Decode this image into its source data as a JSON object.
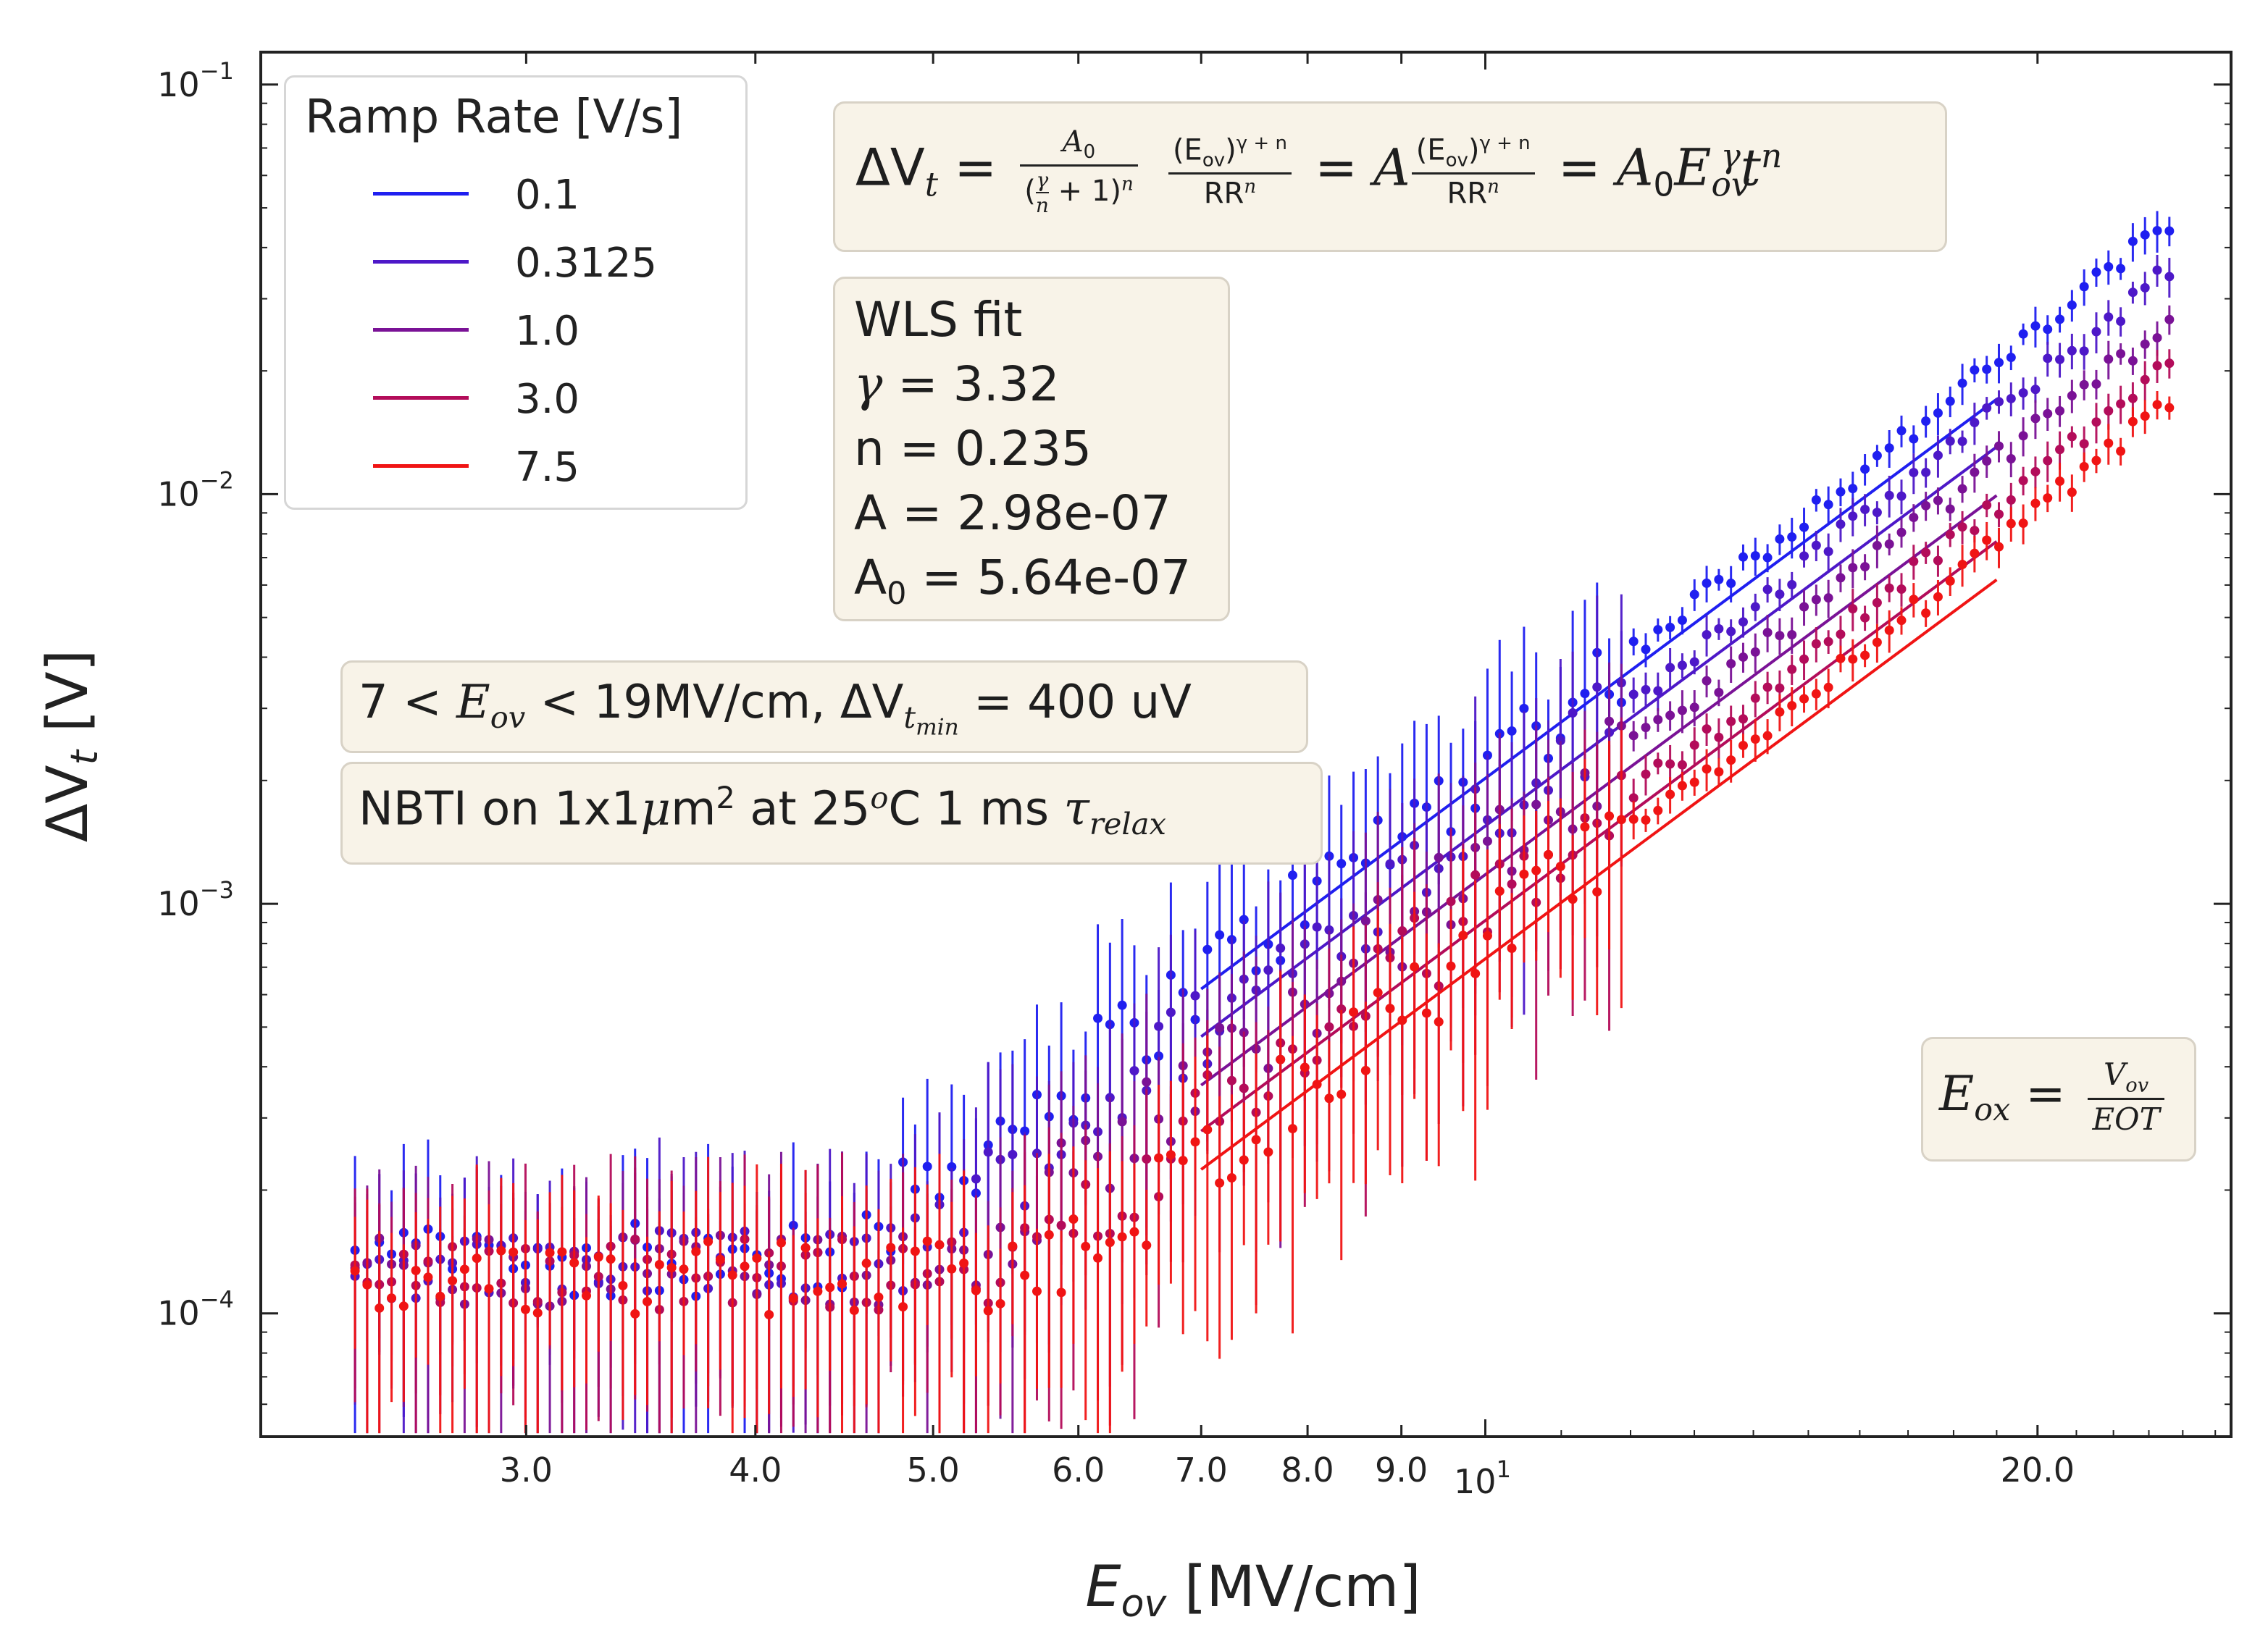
{
  "chart_data": {
    "type": "scatter",
    "title": "",
    "xlabel": "E_ov [MV/cm]",
    "ylabel": "ΔV_t [V]",
    "xscale": "log",
    "yscale": "log",
    "xlim": [
      2.15,
      25.5
    ],
    "ylim": [
      5e-05,
      0.12
    ],
    "x_ticks": [
      {
        "value": 3.0,
        "label": "3.0"
      },
      {
        "value": 4.0,
        "label": "4.0"
      },
      {
        "value": 5.0,
        "label": "5.0"
      },
      {
        "value": 6.0,
        "label": "6.0"
      },
      {
        "value": 7.0,
        "label": "7.0"
      },
      {
        "value": 8.0,
        "label": "8.0"
      },
      {
        "value": 9.0,
        "label": "9.0"
      },
      {
        "value": 20.0,
        "label": "20.0"
      }
    ],
    "x_decade_tick": {
      "value": 10,
      "base": "10",
      "exp": "1"
    },
    "y_ticks": [
      {
        "value": 0.1,
        "base": "10",
        "exp": "−1"
      },
      {
        "value": 0.01,
        "base": "10",
        "exp": "−2"
      },
      {
        "value": 0.001,
        "base": "10",
        "exp": "−3"
      },
      {
        "value": 0.0001,
        "base": "10",
        "exp": "−4"
      }
    ],
    "fit": {
      "gamma": 3.32,
      "n": 0.235,
      "A0": 5.64e-07,
      "fit_range": [
        7,
        19
      ]
    },
    "series": [
      {
        "name": "0.1",
        "ramp_rate": 0.1,
        "color": "#1f1ff0",
        "floor": 0.000135,
        "xmax": 23.6
      },
      {
        "name": "0.3125",
        "ramp_rate": 0.3125,
        "color": "#4d18c8",
        "floor": 0.00013,
        "xmax": 23.6
      },
      {
        "name": "1.0",
        "ramp_rate": 1.0,
        "color": "#7a1296",
        "floor": 0.000128,
        "xmax": 23.6
      },
      {
        "name": "3.0",
        "ramp_rate": 3.0,
        "color": "#b30c5a",
        "floor": 0.000125,
        "xmax": 23.6
      },
      {
        "name": "7.5",
        "ramp_rate": 7.5,
        "color": "#f01414",
        "floor": 0.000122,
        "xmax": 23.6
      }
    ],
    "legend": {
      "title": "Ramp Rate [V/s]",
      "position": "top-left"
    }
  },
  "annotations": {
    "equation": {
      "lhs": "ΔV",
      "lhs_sub": "t",
      "eq": "=",
      "A0": "A",
      "A0_sub": "0",
      "num_expr": "(E",
      "num_sub": "ov",
      "num_close": ")",
      "num_sup": "γ + n",
      "den_rr": "RR",
      "den_sup": "n",
      "den_gamma": "γ",
      "den_n": "n",
      "den_rest": "+ 1)",
      "mid_A": "A",
      "rhs_E": "E",
      "rhs_sub": "ov",
      "rhs_sup": "γ",
      "rhs_t": "t",
      "rhs_tsup": "n"
    },
    "fit_box": {
      "line1": "WLS fit",
      "gamma_sym": "γ",
      "gamma_val": " = 3.32",
      "n_line": "n = 0.235",
      "A_line": "A = 2.98e-07",
      "A0_a": "A",
      "A0_sub": "0",
      "A0_val": " = 5.64e-07"
    },
    "range_box": {
      "a": "7 < ",
      "E": "E",
      "E_sub": "ov",
      "b": " < 19MV/cm, ΔV",
      "V_sub": "t",
      "V_subsub": "min",
      "c": " = 400 uV"
    },
    "cond_box": {
      "a": "NBTI on 1x1",
      "mu": "μ",
      "b": "m",
      "b_sup": "2",
      "c": " at 25",
      "c_sup": "o",
      "d": "C 1 ms ",
      "tau": "τ",
      "tau_sub": "relax"
    },
    "eox_box": {
      "E": "E",
      "E_sub": "ox",
      "eq": "=",
      "num": "V",
      "num_sub": "ov",
      "den": "EOT"
    }
  }
}
